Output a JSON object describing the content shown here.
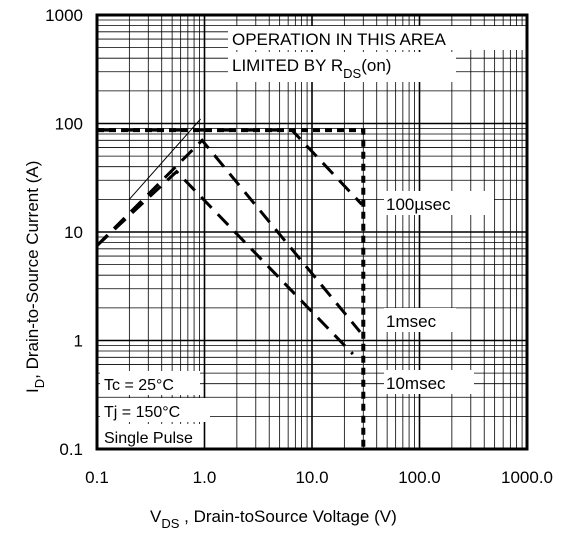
{
  "chart_data": {
    "type": "line",
    "title": "",
    "x_scale": "log",
    "y_scale": "log",
    "xlim": [
      0.1,
      1000
    ],
    "ylim": [
      0.1,
      1000
    ],
    "grid": true,
    "x_ticks": [
      "0.1",
      "1.0",
      "10.0",
      "100.0",
      "1000.0"
    ],
    "y_ticks": [
      "0.1",
      "1",
      "10",
      "100",
      "1000"
    ],
    "xlabel": {
      "main": "V",
      "sub": "DS",
      "rest": " , Drain-toSource Voltage (V)"
    },
    "ylabel": {
      "main": "I",
      "sub": "D",
      "rest": ",  Drain-to-Source Current (A)"
    },
    "annotation": {
      "line1": "OPERATION IN THIS AREA",
      "line2_prefix": "LIMITED BY R",
      "line2_sub": "DS",
      "line2_suffix": "(on)",
      "pointer_from": [
        0.2,
        20
      ],
      "pointer_to": [
        0.92,
        110
      ]
    },
    "conditions": [
      "Tc = 25°C",
      "Tj = 150°C",
      "Single Pulse"
    ],
    "series": [
      {
        "label": "100µsec",
        "style": "dashed",
        "points": [
          [
            0.1,
            87
          ],
          [
            6.5,
            87
          ],
          [
            29,
            18
          ]
        ]
      },
      {
        "label": "1msec",
        "style": "dashed",
        "points": [
          [
            0.1,
            7.5
          ],
          [
            0.95,
            70
          ],
          [
            28,
            1.2
          ]
        ]
      },
      {
        "label": "10msec",
        "style": "dashed",
        "points": [
          [
            0.1,
            7.5
          ],
          [
            0.55,
            36
          ],
          [
            24,
            0.75
          ]
        ]
      },
      {
        "label": "",
        "style": "dashed",
        "points": [
          [
            0.1,
            87
          ],
          [
            30,
            87
          ],
          [
            30,
            0.1
          ]
        ]
      }
    ]
  }
}
